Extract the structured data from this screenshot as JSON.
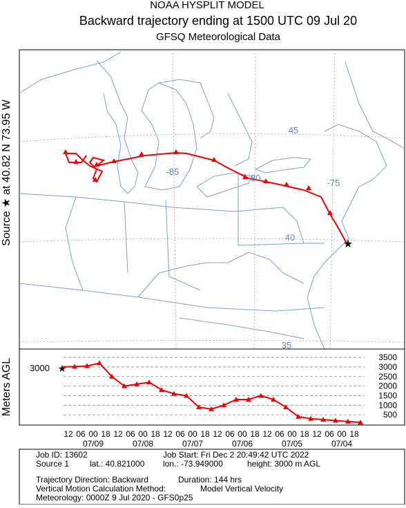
{
  "header": {
    "line1": "NOAA HYSPLIT MODEL",
    "line2": "Backward trajectory ending at 1500 UTC 09 Jul 20",
    "line3": "GFSQ Meteorological Data"
  },
  "map": {
    "side_label": "Source ★ at   40.82 N   73.95 W",
    "grid_labels": [
      "45",
      "-85",
      "40",
      "-75",
      "-80",
      "35"
    ]
  },
  "profile": {
    "axis_label": "Meters AGL",
    "start_label": 3000,
    "ylim": [
      0,
      3900
    ],
    "yticks": [
      500,
      1000,
      1500,
      2000,
      2500,
      3000,
      3500
    ],
    "values": [
      3000,
      3020,
      3050,
      3200,
      2500,
      2000,
      2100,
      2200,
      1800,
      1600,
      1500,
      900,
      800,
      1000,
      1300,
      1300,
      1500,
      1300,
      900,
      400,
      300,
      250,
      200,
      150,
      100
    ],
    "hour_labels": [
      "12",
      "06",
      "00",
      "18",
      "12",
      "06",
      "00",
      "18",
      "12",
      "06",
      "00",
      "18",
      "12",
      "06",
      "00",
      "18",
      "12",
      "06",
      "00",
      "18",
      "12",
      "06",
      "00",
      "18"
    ],
    "date_labels": [
      "07/09",
      "07/08",
      "07/07",
      "07/06",
      "07/05",
      "07/04"
    ]
  },
  "footer": {
    "job_id": "Job ID: 13602",
    "job_start": "Job Start: Fri Dec  2 20:49:42 UTC 2022",
    "source": "Source 1",
    "lat": "lat.: 40.821000",
    "lon": "lon.: -73.949000",
    "height": "height: 3000 m AGL",
    "direction": "Trajectory Direction: Backward",
    "duration": "Duration: 144 hrs",
    "vmethod": "Vertical Motion Calculation Method:",
    "vmodel": "Model Vertical Velocity",
    "met": "Meteorology: 0000Z  9 Jul 2020 - GFS0p25"
  }
}
